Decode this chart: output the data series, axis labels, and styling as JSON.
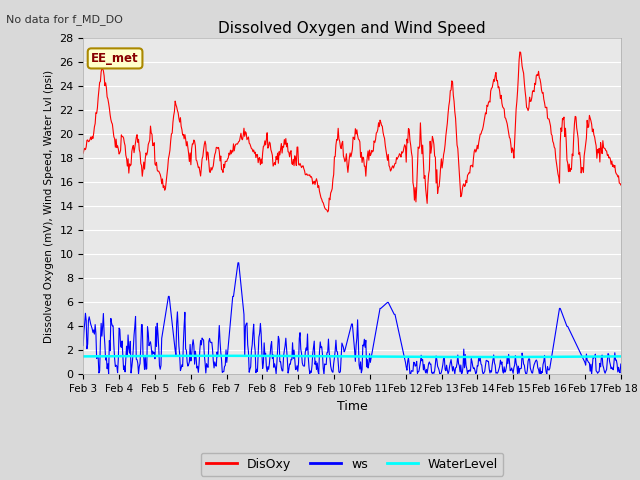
{
  "title": "Dissolved Oxygen and Wind Speed",
  "subtitle": "No data for f_MD_DO",
  "xlabel": "Time",
  "ylabel": "Dissolved Oxygen (mV), Wind Speed, Water Lvl (psi)",
  "ylim": [
    0,
    28
  ],
  "yticks": [
    0,
    2,
    4,
    6,
    8,
    10,
    12,
    14,
    16,
    18,
    20,
    22,
    24,
    26,
    28
  ],
  "fig_bg_color": "#d9d9d9",
  "plot_bg_color": "#e8e8e8",
  "annotation_label": "EE_met",
  "annotation_color": "#ffffcc",
  "annotation_border": "#aa8800",
  "dis_oxy_color": "red",
  "ws_color": "blue",
  "water_level_color": "cyan",
  "legend_labels": [
    "DisOxy",
    "ws",
    "WaterLevel"
  ],
  "xtick_labels": [
    "Feb 3",
    "Feb 4",
    "Feb 5",
    "Feb 6",
    "Feb 7",
    "Feb 8",
    "Feb 9",
    "Feb 10",
    "Feb 11",
    "Feb 12",
    "Feb 13",
    "Feb 14",
    "Feb 15",
    "Feb 16",
    "Feb 17",
    "Feb 18"
  ],
  "n_days": 15
}
